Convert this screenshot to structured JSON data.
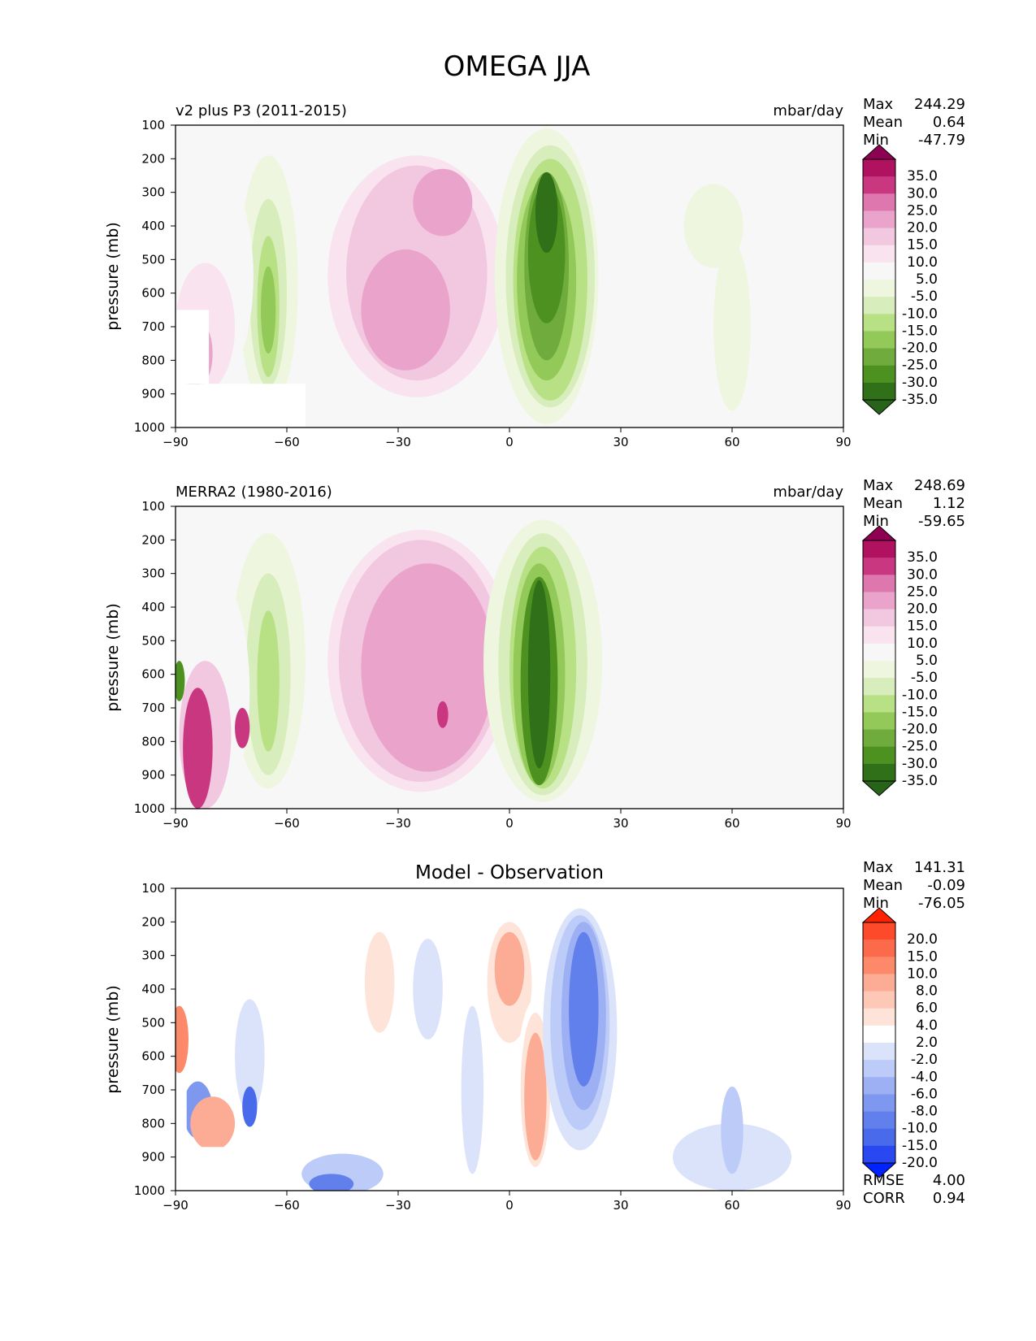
{
  "chart_data": {
    "type": "heatmap",
    "title": "OMEGA JJA",
    "xticks": [
      -90,
      -60,
      -30,
      0,
      30,
      60,
      90
    ],
    "yticks": [
      100,
      200,
      300,
      400,
      500,
      600,
      700,
      800,
      900,
      1000
    ],
    "xlim": [
      -90,
      90
    ],
    "ylim": [
      1000,
      100
    ],
    "ylabel": "pressure (mb)",
    "panels": [
      {
        "id": "model",
        "subtitle_left": "v2 plus P3 (2011-2015)",
        "subtitle_center": "",
        "units": "mbar/day",
        "stats": [
          {
            "label": "Max",
            "value": "244.29"
          },
          {
            "label": "Mean",
            "value": "0.64"
          },
          {
            "label": "Min",
            "value": "-47.79"
          }
        ],
        "extra_stats": [],
        "levels": [
          "35.0",
          "30.0",
          "25.0",
          "20.0",
          "15.0",
          "10.0",
          "5.0",
          "-5.0",
          "-10.0",
          "-15.0",
          "-20.0",
          "-25.0",
          "-30.0",
          "-35.0"
        ],
        "colors": [
          "#8e0152",
          "#b0125f",
          "#c8377f",
          "#de77ae",
          "#eaa4cb",
          "#f2c7e0",
          "#f8e3ef",
          "#f7f7f7",
          "#eef6df",
          "#d8edbc",
          "#b8e186",
          "#93c958",
          "#6fac3d",
          "#4d9221",
          "#2f7018",
          "#276419"
        ],
        "blobs": [
          {
            "lon": 55,
            "plev": 400,
            "w": 8,
            "h": 250,
            "level": -5
          },
          {
            "lon": 60,
            "plev": 700,
            "w": 5,
            "h": 500,
            "level": -5
          },
          {
            "lon": -25,
            "plev": 550,
            "w": 27,
            "h": 800,
            "level": 5
          },
          {
            "lon": -25,
            "plev": 550,
            "w": 24,
            "h": 720,
            "level": 10
          },
          {
            "lon": -25,
            "plev": 540,
            "w": 19,
            "h": 640,
            "level": 15
          },
          {
            "lon": -28,
            "plev": 650,
            "w": 12,
            "h": 360,
            "level": 20
          },
          {
            "lon": -18,
            "plev": 330,
            "w": 8,
            "h": 200,
            "level": 20
          },
          {
            "lon": 10,
            "plev": 550,
            "w": 14,
            "h": 880,
            "level": -5
          },
          {
            "lon": 11,
            "plev": 550,
            "w": 12,
            "h": 780,
            "level": -10
          },
          {
            "lon": 11,
            "plev": 560,
            "w": 10,
            "h": 720,
            "level": -15
          },
          {
            "lon": 10,
            "plev": 560,
            "w": 8,
            "h": 600,
            "level": -20
          },
          {
            "lon": 10,
            "plev": 520,
            "w": 6,
            "h": 560,
            "level": -25
          },
          {
            "lon": 10,
            "plev": 480,
            "w": 5,
            "h": 420,
            "level": -30
          },
          {
            "lon": 10,
            "plev": 360,
            "w": 3,
            "h": 240,
            "level": -35
          },
          {
            "lon": -65,
            "plev": 570,
            "w": 8,
            "h": 760,
            "level": -5
          },
          {
            "lon": -65,
            "plev": 600,
            "w": 5,
            "h": 560,
            "level": -10
          },
          {
            "lon": -65,
            "plev": 640,
            "w": 3,
            "h": 420,
            "level": -15
          },
          {
            "lon": -65,
            "plev": 650,
            "w": 2,
            "h": 260,
            "level": -20
          },
          {
            "lon": -80,
            "plev": 550,
            "w": 11,
            "h": 650,
            "level": 5
          },
          {
            "lon": -82,
            "plev": 700,
            "w": 8,
            "h": 380,
            "level": 10
          },
          {
            "lon": -84,
            "plev": 780,
            "w": 4,
            "h": 200,
            "level": 20
          },
          {
            "lon": -85,
            "plev": 820,
            "w": 3,
            "h": 120,
            "level": 30
          },
          {
            "lon": 33,
            "plev": 600,
            "w": 3,
            "h": 600,
            "level": 5
          }
        ],
        "masks": [
          {
            "lon": [
              -90,
              -81
            ],
            "plev": [
              650,
              870
            ]
          },
          {
            "lon": [
              -90,
              -55
            ],
            "plev": [
              870,
              1000
            ]
          }
        ]
      },
      {
        "id": "obs",
        "subtitle_left": "MERRA2 (1980-2016)",
        "subtitle_center": "",
        "units": "mbar/day",
        "stats": [
          {
            "label": "Max",
            "value": "248.69"
          },
          {
            "label": "Mean",
            "value": "1.12"
          },
          {
            "label": "Min",
            "value": "-59.65"
          }
        ],
        "extra_stats": [],
        "levels": [
          "35.0",
          "30.0",
          "25.0",
          "20.0",
          "15.0",
          "10.0",
          "5.0",
          "-5.0",
          "-10.0",
          "-15.0",
          "-20.0",
          "-25.0",
          "-30.0",
          "-35.0"
        ],
        "colors": [
          "#8e0152",
          "#b0125f",
          "#c8377f",
          "#de77ae",
          "#eaa4cb",
          "#f2c7e0",
          "#f8e3ef",
          "#f7f7f7",
          "#eef6df",
          "#d8edbc",
          "#b8e186",
          "#93c958",
          "#6fac3d",
          "#4d9221",
          "#2f7018",
          "#276419"
        ],
        "blobs": [
          {
            "lon": -24,
            "plev": 560,
            "w": 29,
            "h": 860,
            "level": 5
          },
          {
            "lon": -24,
            "plev": 560,
            "w": 25,
            "h": 780,
            "level": 10
          },
          {
            "lon": -24,
            "plev": 560,
            "w": 22,
            "h": 720,
            "level": 15
          },
          {
            "lon": -22,
            "plev": 580,
            "w": 18,
            "h": 620,
            "level": 20
          },
          {
            "lon": -18,
            "plev": 720,
            "w": 1.5,
            "h": 80,
            "level": 30
          },
          {
            "lon": 9,
            "plev": 560,
            "w": 16,
            "h": 840,
            "level": -5
          },
          {
            "lon": 9,
            "plev": 570,
            "w": 12,
            "h": 780,
            "level": -10
          },
          {
            "lon": 9,
            "plev": 580,
            "w": 9,
            "h": 720,
            "level": -15
          },
          {
            "lon": 8,
            "plev": 600,
            "w": 7,
            "h": 660,
            "level": -20
          },
          {
            "lon": 8,
            "plev": 620,
            "w": 5,
            "h": 620,
            "level": -30
          },
          {
            "lon": 8,
            "plev": 600,
            "w": 3,
            "h": 560,
            "level": -35
          },
          {
            "lon": -65,
            "plev": 560,
            "w": 10,
            "h": 760,
            "level": -5
          },
          {
            "lon": -65,
            "plev": 600,
            "w": 6,
            "h": 600,
            "level": -10
          },
          {
            "lon": -65,
            "plev": 620,
            "w": 3,
            "h": 420,
            "level": -15
          },
          {
            "lon": -80,
            "plev": 650,
            "w": 10,
            "h": 700,
            "level": 5
          },
          {
            "lon": -82,
            "plev": 780,
            "w": 7,
            "h": 440,
            "level": 15
          },
          {
            "lon": -84,
            "plev": 820,
            "w": 4,
            "h": 360,
            "level": 30
          },
          {
            "lon": -72,
            "plev": 760,
            "w": 2,
            "h": 120,
            "level": 30
          },
          {
            "lon": -89,
            "plev": 620,
            "w": 1.5,
            "h": 120,
            "level": -30
          },
          {
            "lon": 52,
            "plev": 700,
            "w": 6,
            "h": 300,
            "level": 5
          }
        ],
        "masks": []
      },
      {
        "id": "diff",
        "subtitle_left": "",
        "subtitle_center": "Model - Observation",
        "units": "",
        "stats": [
          {
            "label": "Max",
            "value": "141.31"
          },
          {
            "label": "Mean",
            "value": "-0.09"
          },
          {
            "label": "Min",
            "value": "-76.05"
          }
        ],
        "extra_stats": [
          {
            "label": "RMSE",
            "value": "4.00"
          },
          {
            "label": "CORR",
            "value": "0.94"
          }
        ],
        "levels": [
          "20.0",
          "15.0",
          "10.0",
          "8.0",
          "6.0",
          "4.0",
          "2.0",
          "-2.0",
          "-4.0",
          "-6.0",
          "-8.0",
          "-10.0",
          "-15.0",
          "-20.0"
        ],
        "colors": [
          "#ff2200",
          "#fc4a2a",
          "#fb6a4a",
          "#fc8a6a",
          "#fcab94",
          "#fdc8b6",
          "#fee4d8",
          "#ffffff",
          "#dbe3fb",
          "#bccbf7",
          "#9cb0f3",
          "#7f98ef",
          "#6280ec",
          "#4a6aec",
          "#2a48f2",
          "#0022ff"
        ],
        "blobs": [
          {
            "lon": -35,
            "plev": 480,
            "w": 8,
            "h": 640,
            "level": 2
          },
          {
            "lon": -35,
            "plev": 380,
            "w": 4,
            "h": 300,
            "level": 4
          },
          {
            "lon": 0,
            "plev": 400,
            "w": 8,
            "h": 480,
            "level": 2
          },
          {
            "lon": 0,
            "plev": 380,
            "w": 6,
            "h": 360,
            "level": 4
          },
          {
            "lon": 0,
            "plev": 340,
            "w": 4,
            "h": 220,
            "level": 8
          },
          {
            "lon": 7,
            "plev": 690,
            "w": 5,
            "h": 520,
            "level": 2
          },
          {
            "lon": 7,
            "plev": 700,
            "w": 4,
            "h": 460,
            "level": 4
          },
          {
            "lon": 7,
            "plev": 720,
            "w": 3,
            "h": 380,
            "level": 8
          },
          {
            "lon": 19,
            "plev": 520,
            "w": 10,
            "h": 720,
            "level": -2
          },
          {
            "lon": 19,
            "plev": 500,
            "w": 8,
            "h": 640,
            "level": -4
          },
          {
            "lon": 20,
            "plev": 480,
            "w": 6,
            "h": 560,
            "level": -6
          },
          {
            "lon": 20,
            "plev": 460,
            "w": 4,
            "h": 460,
            "level": -10
          },
          {
            "lon": -45,
            "plev": 950,
            "w": 11,
            "h": 120,
            "level": -4
          },
          {
            "lon": -48,
            "plev": 980,
            "w": 6,
            "h": 60,
            "level": -10
          },
          {
            "lon": 60,
            "plev": 900,
            "w": 16,
            "h": 200,
            "level": -2
          },
          {
            "lon": 60,
            "plev": 820,
            "w": 3,
            "h": 260,
            "level": -4
          },
          {
            "lon": 32,
            "plev": 600,
            "w": 3,
            "h": 680,
            "level": 2
          },
          {
            "lon": 48,
            "plev": 500,
            "w": 2,
            "h": 360,
            "level": 2
          },
          {
            "lon": -22,
            "plev": 400,
            "w": 4,
            "h": 300,
            "level": -2
          },
          {
            "lon": -10,
            "plev": 700,
            "w": 3,
            "h": 500,
            "level": -2
          },
          {
            "lon": 88,
            "plev": 600,
            "w": 3,
            "h": 600,
            "level": 2
          },
          {
            "lon": -89,
            "plev": 550,
            "w": 2.5,
            "h": 200,
            "level": 10
          },
          {
            "lon": -84,
            "plev": 760,
            "w": 4,
            "h": 170,
            "level": -8
          },
          {
            "lon": -80,
            "plev": 800,
            "w": 6,
            "h": 160,
            "level": 8
          },
          {
            "lon": -70,
            "plev": 600,
            "w": 4,
            "h": 340,
            "level": -2
          },
          {
            "lon": -70,
            "plev": 750,
            "w": 2,
            "h": 120,
            "level": -15
          }
        ],
        "masks": [
          {
            "lon": [
              -90,
              -87
            ],
            "plev": [
              650,
              870
            ]
          },
          {
            "lon": [
              -90,
              -58
            ],
            "plev": [
              870,
              1000
            ]
          }
        ]
      }
    ]
  }
}
